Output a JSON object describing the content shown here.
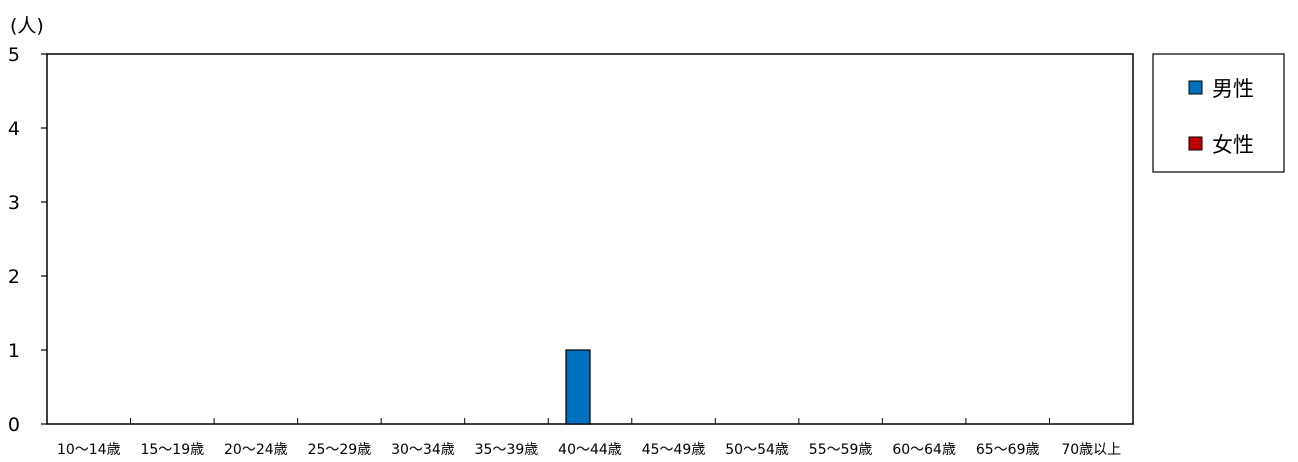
{
  "chart_data": {
    "type": "bar",
    "y_unit": "(人)",
    "categories": [
      "10～14歳",
      "15～19歳",
      "20～24歳",
      "25～29歳",
      "30～34歳",
      "35～39歳",
      "40～44歳",
      "45～49歳",
      "50～54歳",
      "55～59歳",
      "60～64歳",
      "65～69歳",
      "70歳以上"
    ],
    "series": [
      {
        "name": "男性",
        "color": "#0070c0",
        "values": [
          0,
          0,
          0,
          0,
          0,
          0,
          1,
          0,
          0,
          0,
          0,
          0,
          0
        ]
      },
      {
        "name": "女性",
        "color": "#c00000",
        "values": [
          0,
          0,
          0,
          0,
          0,
          0,
          0,
          0,
          0,
          0,
          0,
          0,
          0
        ]
      }
    ],
    "ylim": [
      0,
      5
    ],
    "yticks": [
      0,
      1,
      2,
      3,
      4,
      5
    ],
    "grid": false,
    "legend_position": "right"
  }
}
